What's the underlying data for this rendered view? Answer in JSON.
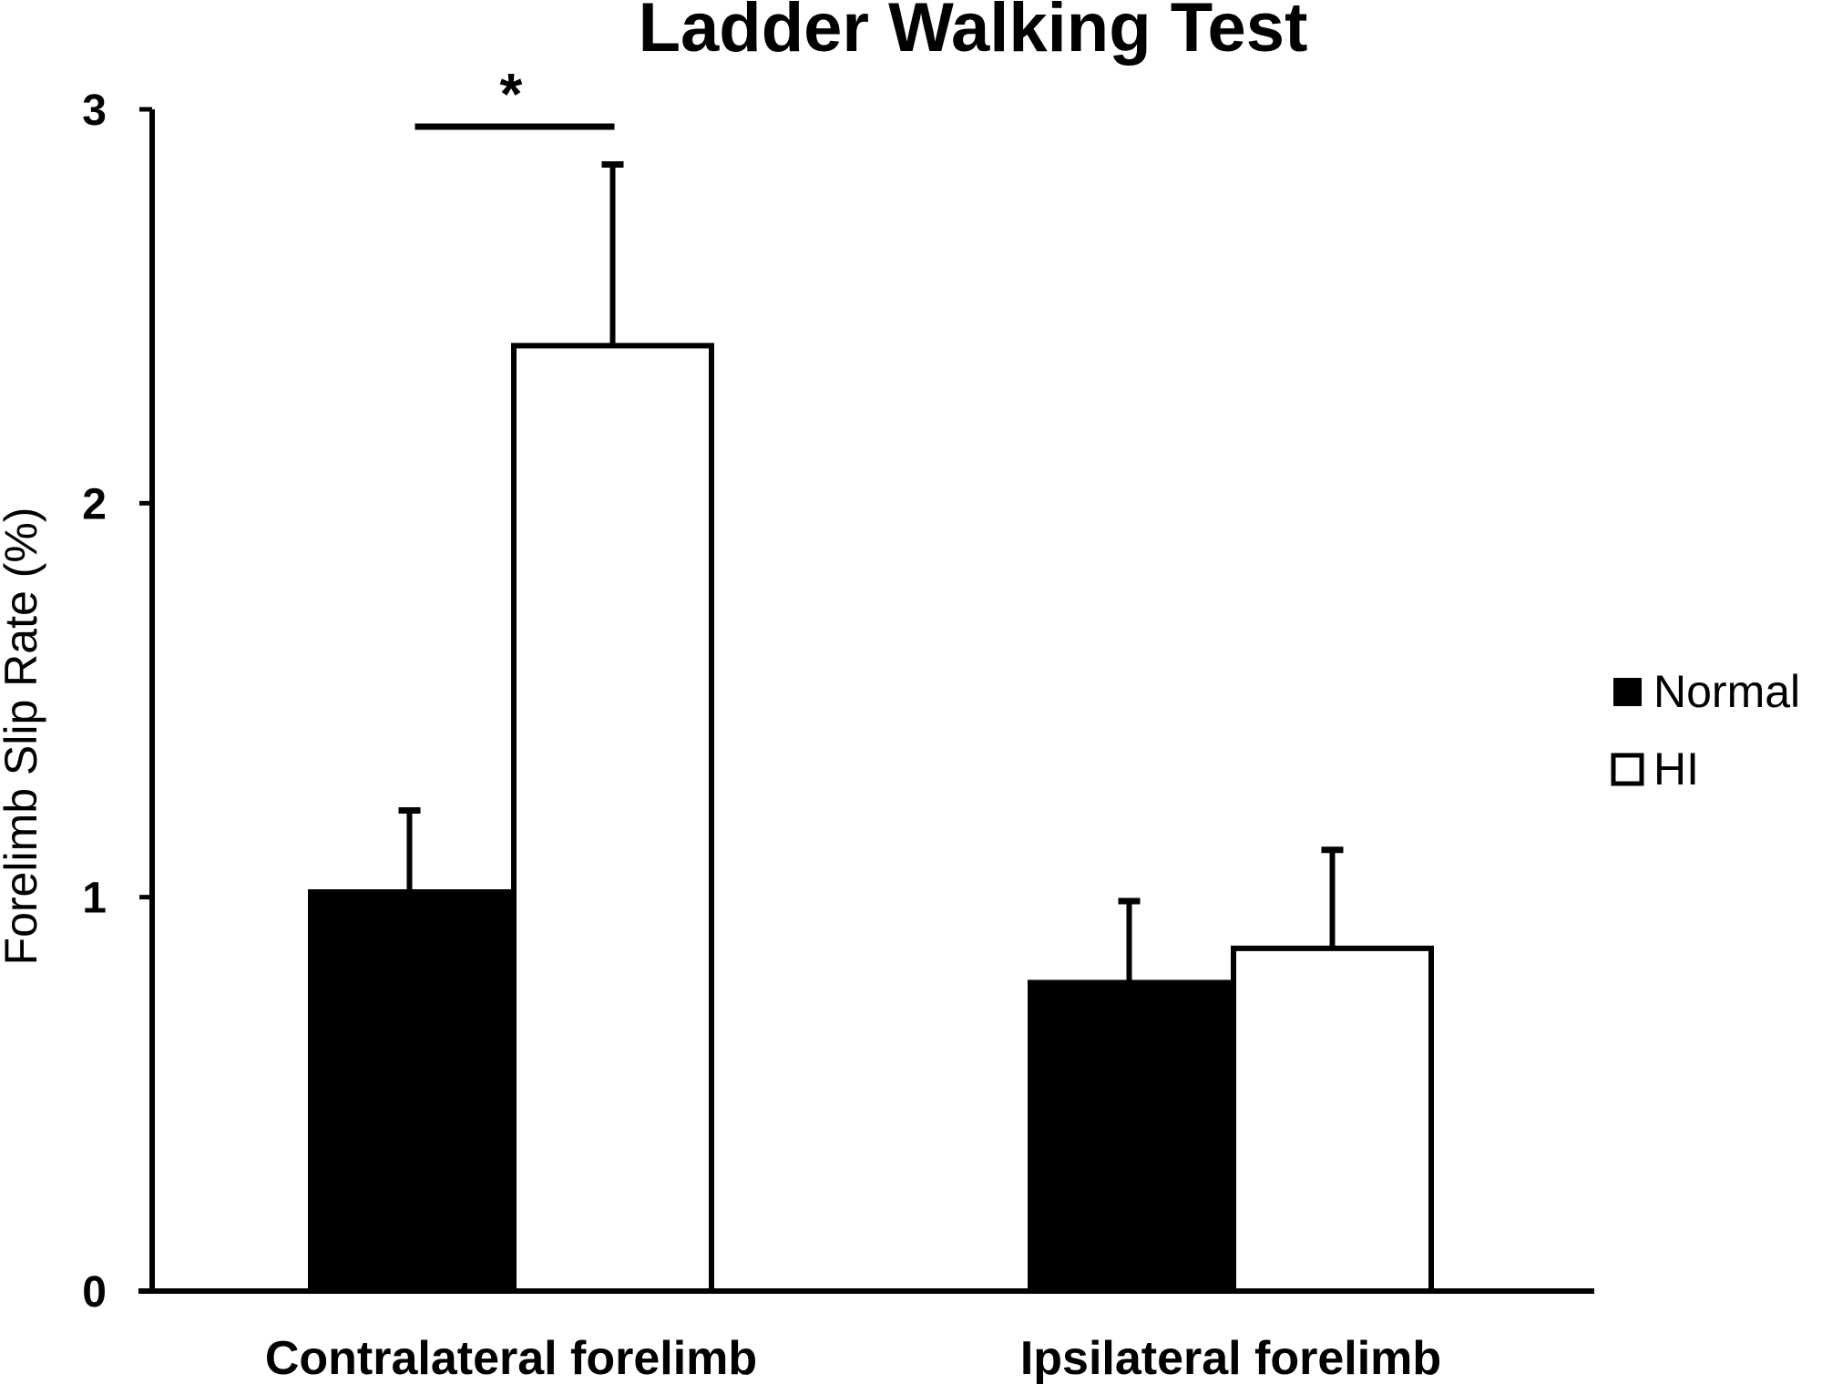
{
  "chart_data": {
    "type": "bar",
    "title": "Ladder Walking Test",
    "xlabel": "",
    "ylabel": "Forelimb Slip Rate (%)",
    "ylim": [
      0,
      3
    ],
    "yticks": [
      "0",
      "1",
      "2",
      "3"
    ],
    "grid": false,
    "legend_position": "right",
    "categories": [
      "Contralateral forelimb",
      "Ipsilateral forelimb"
    ],
    "series": [
      {
        "name": "Normal",
        "fill": "#000000",
        "values": [
          1.02,
          0.79
        ],
        "errors": [
          0.2,
          0.2
        ]
      },
      {
        "name": "HI",
        "fill": "#ffffff",
        "values": [
          2.4,
          0.87
        ],
        "errors": [
          0.46,
          0.25
        ]
      }
    ],
    "significance": [
      {
        "label": "*",
        "category": 0,
        "from_series": 0,
        "to_series": 1
      }
    ]
  },
  "colors": {
    "stroke": "#000000",
    "background": "#ffffff"
  }
}
